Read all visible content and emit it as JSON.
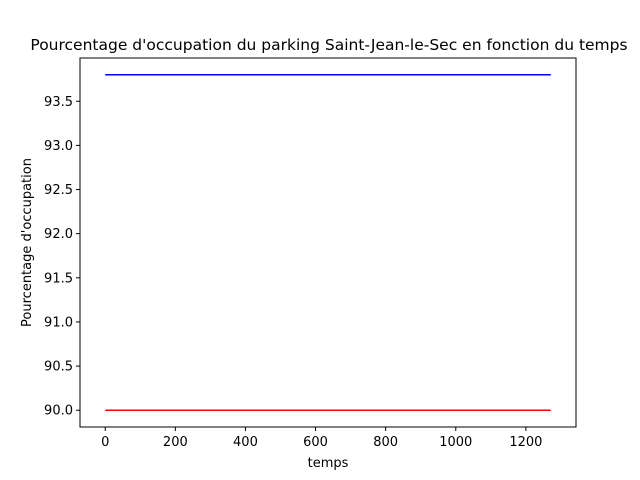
{
  "chart_data": {
    "type": "line",
    "title": "Pourcentage d'occupation du parking Saint-Jean-le-Sec en fonction du temps",
    "xlabel": "temps",
    "ylabel": "Pourcentage d'occupation",
    "xlim": [
      -72,
      1343
    ],
    "ylim": [
      89.81,
      93.99
    ],
    "xticks": [
      0,
      200,
      400,
      600,
      800,
      1000,
      1200
    ],
    "yticks": [
      90.0,
      90.5,
      91.0,
      91.5,
      92.0,
      92.5,
      93.0,
      93.5
    ],
    "grid": false,
    "legend": "none",
    "series": [
      {
        "color": "#0000ff",
        "x": [
          0,
          1271
        ],
        "y": [
          93.8,
          93.8
        ]
      },
      {
        "color": "#ff0000",
        "x": [
          0,
          1271
        ],
        "y": [
          90.0,
          90.0
        ]
      }
    ]
  }
}
